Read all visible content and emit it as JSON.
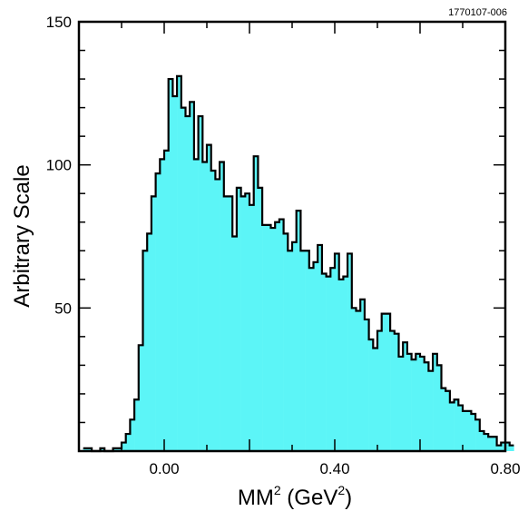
{
  "figure_id": "1770107-006",
  "chart_data": {
    "type": "bar",
    "style": "step-histogram",
    "fill_color": "#5CF5F7",
    "line_color": "#000000",
    "xlabel": {
      "base": "MM",
      "sup": "2",
      "unit_prefix": " (GeV",
      "unit_sup": "2",
      "unit_suffix": ")"
    },
    "ylabel": "Arbitrary Scale",
    "xlim": [
      -0.2,
      0.8
    ],
    "ylim": [
      0,
      150
    ],
    "bin_width": 0.01,
    "x_start": -0.19,
    "x_ticks": [
      0.0,
      0.4,
      0.8
    ],
    "x_tick_labels": [
      "0.00",
      "0.40",
      "0.80"
    ],
    "y_ticks": [
      50,
      100,
      150
    ],
    "y_tick_labels": [
      "50",
      "100",
      "150"
    ],
    "grid": false,
    "values": [
      1,
      1,
      0,
      0,
      1,
      0,
      0,
      1,
      1,
      3,
      6,
      11,
      18,
      37,
      70,
      76,
      89,
      97,
      102,
      105,
      130,
      124,
      131,
      120,
      117,
      122,
      102,
      117,
      101,
      107,
      98,
      95,
      101,
      89,
      89,
      75,
      92,
      89,
      90,
      86,
      103,
      92,
      79,
      79,
      78,
      80,
      81,
      76,
      70,
      73,
      84,
      70,
      70,
      64,
      66,
      72,
      62,
      61,
      64,
      69,
      60,
      61,
      69,
      50,
      49,
      53,
      46,
      39,
      36,
      42,
      48,
      48,
      42,
      41,
      33,
      38,
      34,
      32,
      34,
      33,
      31,
      28,
      34,
      30,
      22,
      21,
      17,
      18,
      16,
      14,
      14,
      13,
      11,
      7,
      6,
      5,
      5,
      2,
      3,
      3,
      2
    ]
  }
}
